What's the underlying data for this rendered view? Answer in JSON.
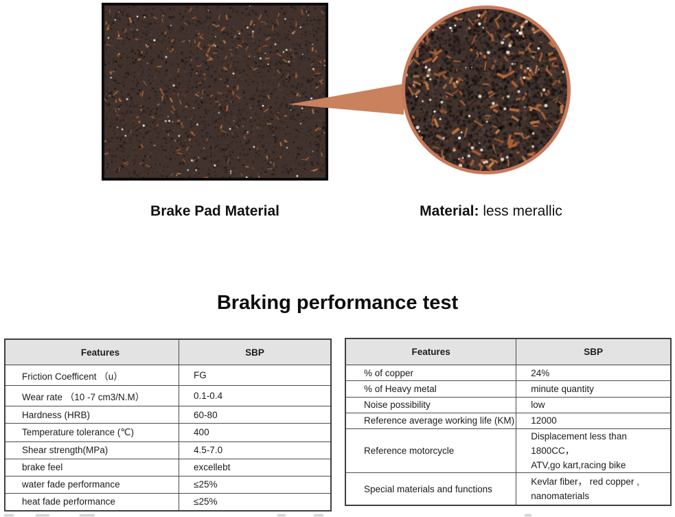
{
  "hero": {
    "photo_caption": "Brake Pad Material",
    "material_label": "Material:",
    "material_value": " less merallic"
  },
  "section_title": "Braking performance test",
  "left_table": {
    "headers": {
      "feature": "Features",
      "value": "SBP"
    },
    "rows": [
      {
        "feature": "Friction Coefficent （u）",
        "value": "FG"
      },
      {
        "feature": "Wear rate （10 -7 cm3/N.M）",
        "value": "0.1-0.4"
      },
      {
        "feature": "Hardness (HRB)",
        "value": "60-80"
      },
      {
        "feature": "Temperature tolerance (℃)",
        "value": "400"
      },
      {
        "feature": "Shear strength(MPa)",
        "value": "4.5-7.0"
      },
      {
        "feature": "brake feel",
        "value": "excellebt"
      },
      {
        "feature": "water fade performance",
        "value": "≤25%"
      },
      {
        "feature": "heat fade performance",
        "value": "≤25%"
      }
    ]
  },
  "right_table": {
    "headers": {
      "feature": "Features",
      "value": "SBP"
    },
    "rows": [
      {
        "feature": "% of copper",
        "value": "24%"
      },
      {
        "feature": "% of Heavy metal",
        "value": "minute quantity"
      },
      {
        "feature": "Noise possibility",
        "value": "low"
      },
      {
        "feature": "Reference average working life (KM)",
        "value": "12000"
      },
      {
        "feature": "Reference motorcycle",
        "value1": "Displacement less than 1800CC，",
        "value2": "ATV,go kart,racing bike"
      },
      {
        "feature": "Special materials and functions",
        "value1": "Kevlar fiber， red copper ,",
        "value2": "nanomaterials"
      }
    ]
  },
  "colors": {
    "accent_copper": "#c8795b",
    "wedge": "#c9825d",
    "header_bg": "#e3e3e3",
    "table_border": "#3f3f3f",
    "material_base": "#41322d",
    "fleck_orange": "#c9763f",
    "speck_white": "#ddd8cc"
  }
}
